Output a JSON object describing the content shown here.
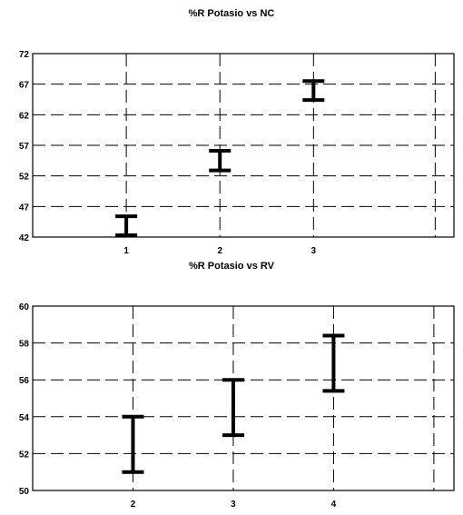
{
  "chart_data": [
    {
      "type": "errorbar",
      "title": "%R Potasio vs NC",
      "xlabel": "",
      "ylabel": "",
      "categories": [
        "1",
        "2",
        "3"
      ],
      "x": [
        1,
        2,
        3
      ],
      "xlim": [
        0,
        4.5
      ],
      "ylim": [
        42,
        72
      ],
      "yticks": [
        42,
        47,
        52,
        57,
        62,
        67,
        72
      ],
      "grid": true,
      "intervals": [
        {
          "x": 1,
          "low": 42.3,
          "high": 45.4
        },
        {
          "x": 2,
          "low": 52.9,
          "high": 56.1
        },
        {
          "x": 3,
          "low": 64.4,
          "high": 67.5
        }
      ]
    },
    {
      "type": "errorbar",
      "title": "%R Potasio vs RV",
      "xlabel": "",
      "ylabel": "",
      "categories": [
        "2",
        "3",
        "4"
      ],
      "x": [
        2,
        3,
        4
      ],
      "xlim": [
        1,
        5.2
      ],
      "ylim": [
        50,
        60
      ],
      "yticks": [
        50,
        52,
        54,
        56,
        58,
        60
      ],
      "grid": true,
      "intervals": [
        {
          "x": 2,
          "low": 51.0,
          "high": 54.0
        },
        {
          "x": 3,
          "low": 53.0,
          "high": 56.0
        },
        {
          "x": 4,
          "low": 55.4,
          "high": 58.4
        }
      ]
    }
  ]
}
